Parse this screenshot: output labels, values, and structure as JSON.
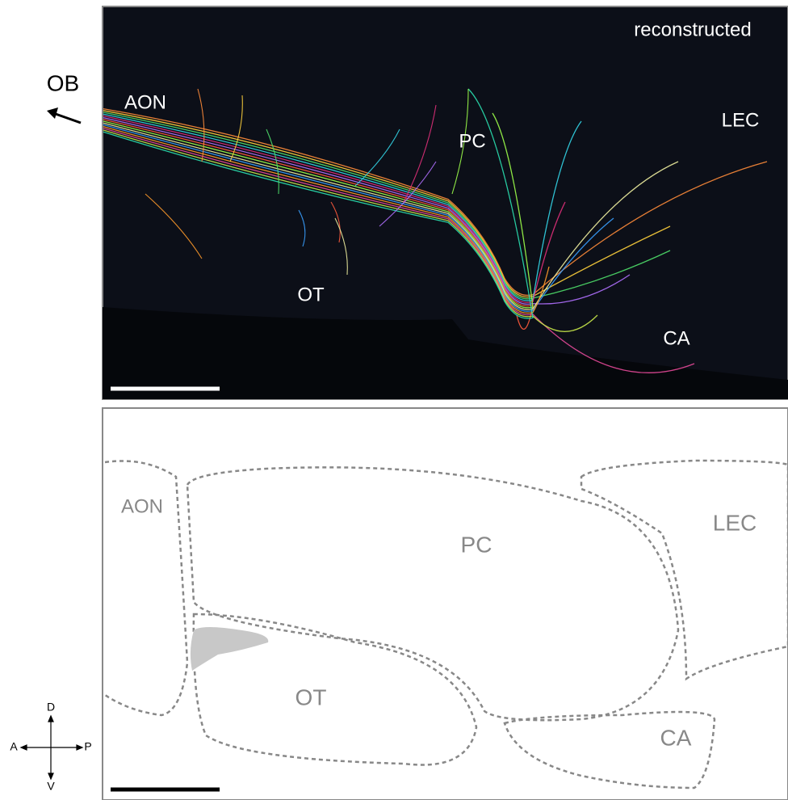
{
  "orientation_label": "OB",
  "top_panel": {
    "tag": "reconstructed",
    "regions": [
      "AON",
      "PC",
      "LEC",
      "OT",
      "CA"
    ]
  },
  "bottom_panel": {
    "regions": [
      "AON",
      "PC",
      "LEC",
      "OT",
      "CA"
    ]
  },
  "compass": {
    "dorsal": "D",
    "ventral": "V",
    "anterior": "A",
    "posterior": "P"
  }
}
